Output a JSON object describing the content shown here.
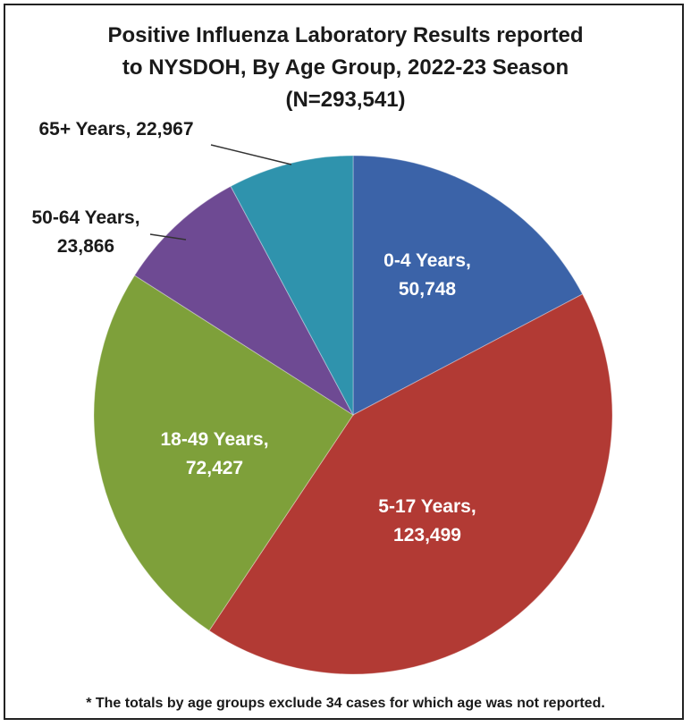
{
  "chart_data": {
    "type": "pie",
    "title_lines": [
      "Positive Influenza Laboratory Results reported",
      "to NYSDOH, By Age Group, 2022-23 Season",
      "(N=293,541)"
    ],
    "footnote": "* The totals by age groups exclude 34 cases for which age was not reported.",
    "slices": [
      {
        "name": "0-4 Years",
        "value": 50748,
        "value_label": "50,748",
        "color": "#3b63a8"
      },
      {
        "name": "5-17 Years",
        "value": 123499,
        "value_label": "123,499",
        "color": "#b23a34"
      },
      {
        "name": "18-49 Years",
        "value": 72427,
        "value_label": "72,427",
        "color": "#7ea03a"
      },
      {
        "name": "50-64 Years",
        "value": 23866,
        "value_label": "23,866",
        "color": "#6e4a93"
      },
      {
        "name": "65+ Years",
        "value": 22967,
        "value_label": "22,967",
        "color": "#2f93ad"
      }
    ]
  }
}
